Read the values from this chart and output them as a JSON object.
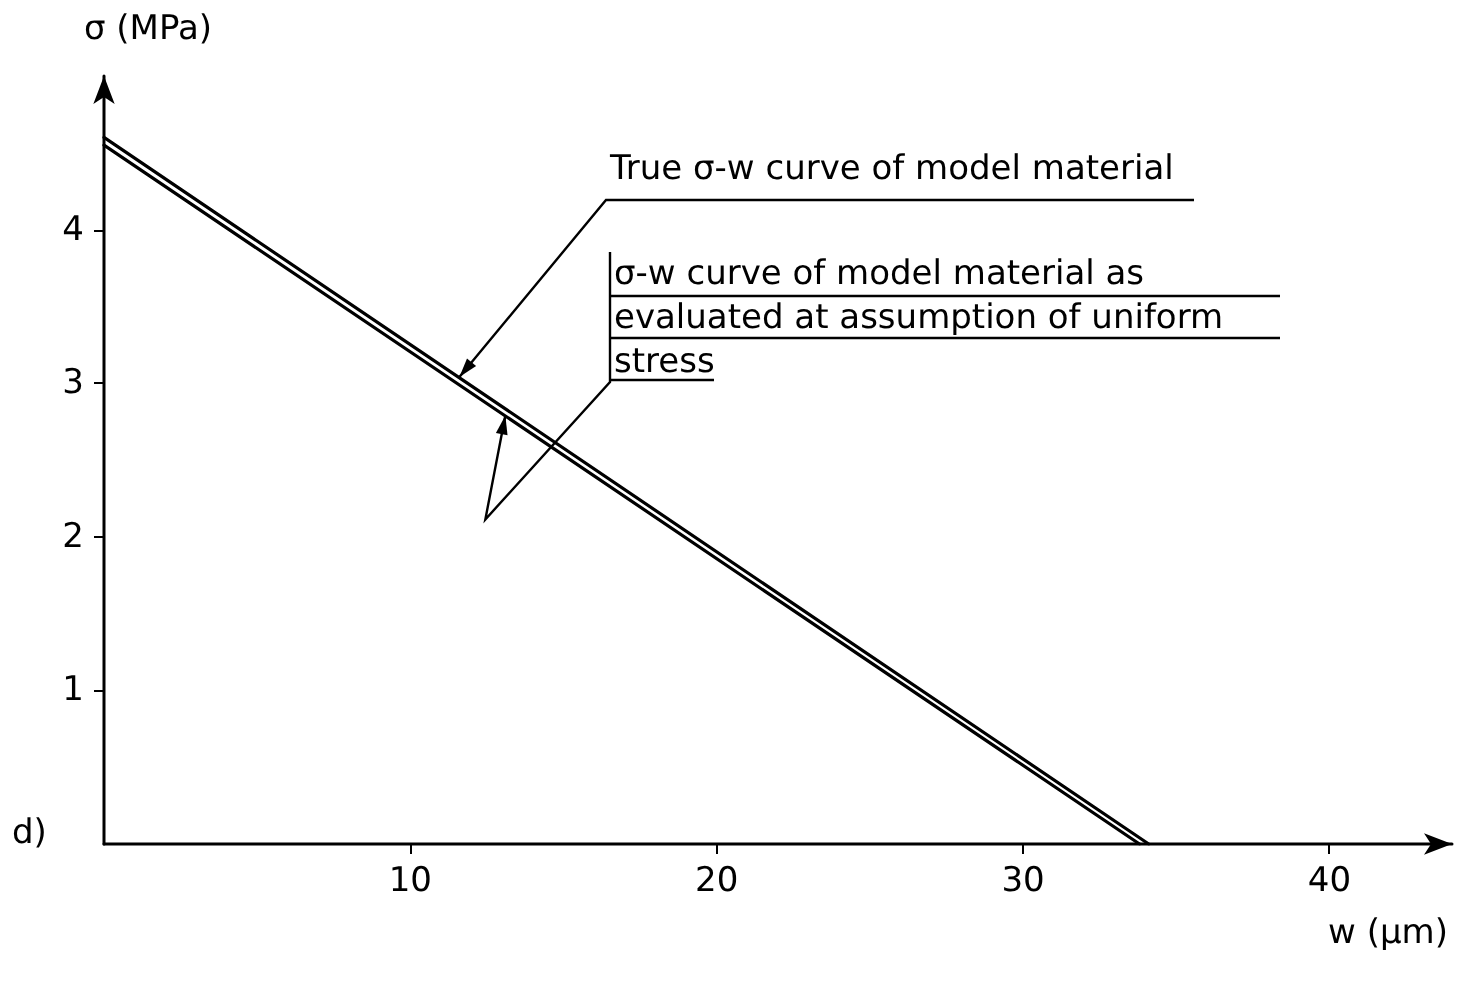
{
  "chart_data": {
    "type": "line",
    "xlabel": "w (μm)",
    "ylabel": "σ (MPa)",
    "xlim": [
      0,
      44
    ],
    "ylim": [
      0,
      5
    ],
    "xticks": [
      10,
      20,
      30,
      40
    ],
    "yticks": [
      1,
      2,
      3,
      4
    ],
    "grid": false,
    "marker": "none",
    "line_style": "solid",
    "series": [
      {
        "color": "#000000",
        "x": [
          0,
          34.1
        ],
        "values": [
          4.6,
          0
        ]
      },
      {
        "color": "#000000",
        "x": [
          0,
          33.8
        ],
        "values": [
          4.55,
          0
        ]
      }
    ],
    "annotations": [
      "d)",
      {
        "text": "True σ-w curve of model material",
        "x": 11.6,
        "y": 3.04
      },
      {
        "text": "σ-w curve of model material as evaluated at assumption of uniform stress",
        "x": 13.1,
        "y": 2.79
      }
    ]
  }
}
